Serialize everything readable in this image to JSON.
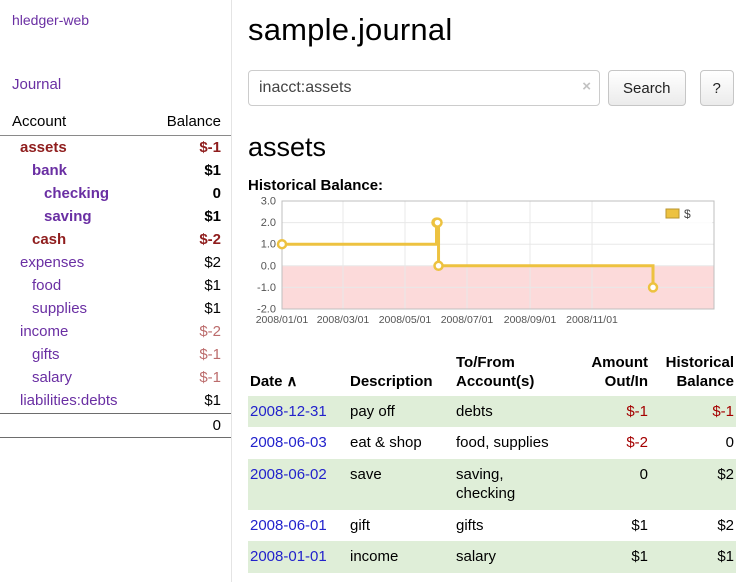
{
  "colors": {
    "link_purple": "#6a2fa3",
    "neg_strong": "#8f1d1d",
    "neg_soft": "#bc6c6c",
    "negative": "#a40000",
    "date_link": "#2222cc",
    "row_stripe": "#dfeed8"
  },
  "app": {
    "brand": "hledger-web",
    "nav_journal": "Journal"
  },
  "sidebar": {
    "header": {
      "account": "Account",
      "balance": "Balance"
    },
    "accounts": [
      {
        "name": "assets",
        "indent": 0,
        "bold": true,
        "name_class": "neg-strong",
        "balance": "$-1",
        "balance_class": "neg-strong",
        "balance_bold": true
      },
      {
        "name": "bank",
        "indent": 1,
        "bold": true,
        "name_class": "",
        "balance": "$1",
        "balance_class": "",
        "balance_bold": true
      },
      {
        "name": "checking",
        "indent": 2,
        "bold": true,
        "name_class": "",
        "balance": "0",
        "balance_class": "",
        "balance_bold": true
      },
      {
        "name": "saving",
        "indent": 2,
        "bold": true,
        "name_class": "",
        "balance": "$1",
        "balance_class": "",
        "balance_bold": true
      },
      {
        "name": "cash",
        "indent": 1,
        "bold": true,
        "name_class": "neg-strong",
        "balance": "$-2",
        "balance_class": "neg-strong",
        "balance_bold": true
      },
      {
        "name": "expenses",
        "indent": 0,
        "bold": false,
        "name_class": "",
        "balance": "$2",
        "balance_class": "",
        "balance_bold": false
      },
      {
        "name": "food",
        "indent": 1,
        "bold": false,
        "name_class": "",
        "balance": "$1",
        "balance_class": "",
        "balance_bold": false
      },
      {
        "name": "supplies",
        "indent": 1,
        "bold": false,
        "name_class": "",
        "balance": "$1",
        "balance_class": "",
        "balance_bold": false
      },
      {
        "name": "income",
        "indent": 0,
        "bold": false,
        "name_class": "",
        "balance": "$-2",
        "balance_class": "neg-soft",
        "balance_bold": false
      },
      {
        "name": "gifts",
        "indent": 1,
        "bold": false,
        "name_class": "",
        "balance": "$-1",
        "balance_class": "neg-soft",
        "balance_bold": false
      },
      {
        "name": "salary",
        "indent": 1,
        "bold": false,
        "name_class": "",
        "balance": "$-1",
        "balance_class": "neg-soft",
        "balance_bold": false
      },
      {
        "name": "liabilities:debts",
        "indent": 0,
        "bold": false,
        "name_class": "",
        "balance": "$1",
        "balance_class": "",
        "balance_bold": false
      }
    ],
    "total": "0"
  },
  "main": {
    "title": "sample.journal",
    "search": {
      "value": "inacct:assets",
      "clear_icon": "×",
      "button_label": "Search",
      "help_label": "?"
    },
    "heading": "assets",
    "chart_label": "Historical Balance:"
  },
  "chart_data": {
    "type": "line",
    "title": "Historical Balance",
    "series": [
      {
        "name": "$",
        "color": "#edc240",
        "step": true,
        "points": [
          [
            "2008-01-01",
            1
          ],
          [
            "2008-06-01",
            2
          ],
          [
            "2008-06-02",
            2
          ],
          [
            "2008-06-03",
            0
          ],
          [
            "2008-12-31",
            -1
          ]
        ]
      }
    ],
    "x_domain": [
      "2008-01-01",
      "2009-03-01"
    ],
    "y_domain": [
      -2,
      3
    ],
    "y_ticks": [
      3,
      2,
      1,
      0,
      -1,
      -2
    ],
    "x_ticks": [
      "2008/01/01",
      "2008/03/01",
      "2008/05/01",
      "2008/07/01",
      "2008/09/01",
      "2008/11/01"
    ],
    "negative_region_color": "#fcdada",
    "grid_color": "#e8e8e8",
    "border_color": "#bfbfbf",
    "axis_label_color": "#545454",
    "legend": {
      "label": "$",
      "swatch_color": "#edc240",
      "swatch_border": "#b9962f",
      "position": "top-right"
    }
  },
  "table": {
    "headers": [
      {
        "lines": [
          "Date"
        ],
        "align": "left",
        "sort_icon": "∧",
        "sortable": true
      },
      {
        "lines": [
          "Description"
        ],
        "align": "left"
      },
      {
        "lines": [
          "To/From",
          "Account(s)"
        ],
        "align": "left"
      },
      {
        "lines": [
          "Amount",
          "Out/In"
        ],
        "align": "right"
      },
      {
        "lines": [
          "Historical",
          "Balance"
        ],
        "align": "right"
      }
    ],
    "rows": [
      {
        "date": "2008-12-31",
        "description": "pay off",
        "accounts": "debts",
        "amount": "$-1",
        "amount_negative": true,
        "balance": "$-1",
        "balance_negative": true
      },
      {
        "date": "2008-06-03",
        "description": "eat & shop",
        "accounts": "food, supplies",
        "amount": "$-2",
        "amount_negative": true,
        "balance": "0",
        "balance_negative": false
      },
      {
        "date": "2008-06-02",
        "description": "save",
        "accounts": "saving, checking",
        "amount": "0",
        "amount_negative": false,
        "balance": "$2",
        "balance_negative": false
      },
      {
        "date": "2008-06-01",
        "description": "gift",
        "accounts": "gifts",
        "amount": "$1",
        "amount_negative": false,
        "balance": "$2",
        "balance_negative": false
      },
      {
        "date": "2008-01-01",
        "description": "income",
        "accounts": "salary",
        "amount": "$1",
        "amount_negative": false,
        "balance": "$1",
        "balance_negative": false
      }
    ]
  }
}
